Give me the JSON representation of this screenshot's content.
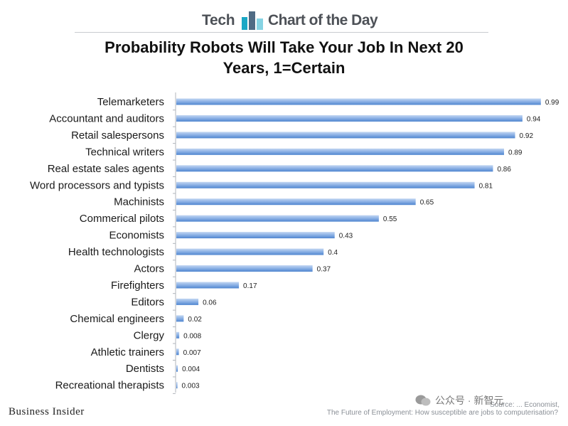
{
  "header": {
    "left_text": "Tech",
    "right_text": "Chart of the Day",
    "logo_icon": "bar-chart-logo"
  },
  "footer": {
    "brand": "Business Insider",
    "source_line1": "Source: ... Economist,",
    "source_line2": "The Future of Employment: How susceptible are jobs to computerisation?"
  },
  "watermark": {
    "text": "公众号 · 新智元"
  },
  "colors": {
    "bar_top": "#a9c6ec",
    "bar_bottom": "#4f86d0",
    "axis": "#b0b5bb"
  },
  "chart_data": {
    "type": "bar",
    "orientation": "horizontal",
    "title": "Probability Robots Will Take Your Job In Next 20 Years, 1=Certain",
    "xlabel": "",
    "ylabel": "",
    "xlim": [
      0,
      1
    ],
    "grid": false,
    "legend": "none",
    "categories": [
      "Telemarketers",
      "Accountant and auditors",
      "Retail salespersons",
      "Technical writers",
      "Real estate sales agents",
      "Word processors and typists",
      "Machinists",
      "Commerical pilots",
      "Economists",
      "Health technologists",
      "Actors",
      "Firefighters",
      "Editors",
      "Chemical engineers",
      "Clergy",
      "Athletic trainers",
      "Dentists",
      "Recreational therapists"
    ],
    "values": [
      0.99,
      0.94,
      0.92,
      0.89,
      0.86,
      0.81,
      0.65,
      0.55,
      0.43,
      0.4,
      0.37,
      0.17,
      0.06,
      0.02,
      0.008,
      0.007,
      0.004,
      0.003
    ],
    "labels": [
      "0.99",
      "0.94",
      "0.92",
      "0.89",
      "0.86",
      "0.81",
      "0.65",
      "0.55",
      "0.43",
      "0.4",
      "0.37",
      "0.17",
      "0.06",
      "0.02",
      "0.008",
      "0.007",
      "0.004",
      "0.003"
    ]
  }
}
